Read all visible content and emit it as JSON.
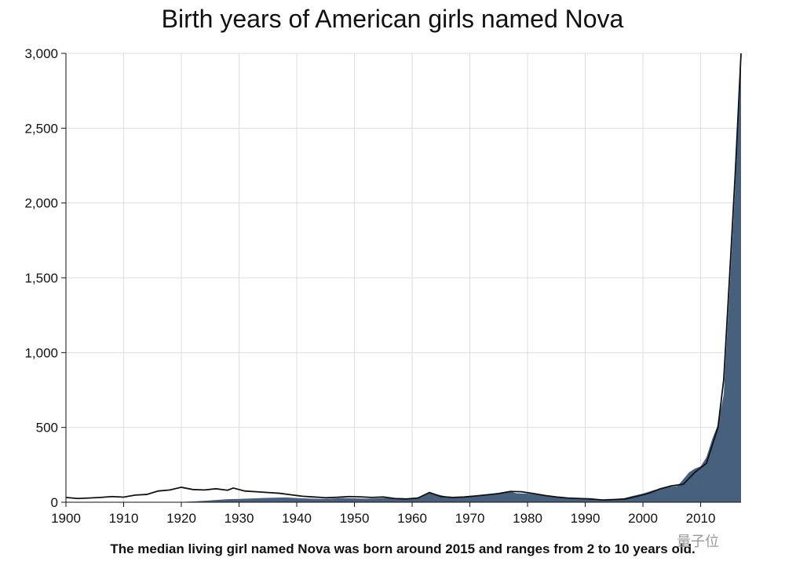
{
  "chart_data": {
    "type": "area",
    "title": "Birth years of American girls named Nova",
    "caption": "The median living girl named Nova was born around 2015 and ranges from 2 to 10 years old.",
    "xlabel": "",
    "ylabel": "",
    "xlim": [
      1900,
      2017
    ],
    "ylim": [
      0,
      3000
    ],
    "grid": true,
    "x_ticks": [
      1900,
      1910,
      1920,
      1930,
      1940,
      1950,
      1960,
      1970,
      1980,
      1990,
      2000,
      2010
    ],
    "y_ticks": [
      0,
      500,
      1000,
      1500,
      2000,
      2500,
      3000
    ],
    "y_tick_labels": [
      "0",
      "500",
      "1,000",
      "1,500",
      "2,000",
      "2,500",
      "3,000"
    ],
    "colors": {
      "fill": "#46607e",
      "line": "#111111",
      "grid": "#dddddd"
    },
    "series": [
      {
        "role": "births (line)",
        "x": [
          1900,
          1902,
          1904,
          1906,
          1908,
          1910,
          1912,
          1914,
          1916,
          1918,
          1920,
          1922,
          1924,
          1926,
          1928,
          1929,
          1931,
          1933,
          1935,
          1937,
          1939,
          1941,
          1943,
          1945,
          1947,
          1949,
          1951,
          1953,
          1955,
          1957,
          1959,
          1961,
          1963,
          1965,
          1967,
          1969,
          1971,
          1973,
          1975,
          1977,
          1979,
          1981,
          1983,
          1985,
          1987,
          1989,
          1991,
          1993,
          1995,
          1997,
          1999,
          2001,
          2003,
          2005,
          2007,
          2009,
          2011,
          2013,
          2014,
          2015,
          2016,
          2017
        ],
        "y": [
          32,
          25,
          28,
          32,
          38,
          34,
          48,
          52,
          75,
          82,
          100,
          85,
          82,
          90,
          80,
          95,
          75,
          70,
          65,
          60,
          50,
          40,
          35,
          30,
          33,
          38,
          36,
          32,
          35,
          25,
          22,
          28,
          65,
          38,
          32,
          35,
          42,
          50,
          58,
          72,
          70,
          58,
          45,
          35,
          28,
          25,
          22,
          15,
          18,
          22,
          40,
          60,
          90,
          110,
          120,
          200,
          260,
          500,
          820,
          1500,
          2200,
          3000
        ]
      },
      {
        "role": "living (filled area)",
        "x": [
          1900,
          1910,
          1915,
          1920,
          1922,
          1924,
          1926,
          1928,
          1930,
          1932,
          1934,
          1936,
          1938,
          1940,
          1942,
          1944,
          1946,
          1948,
          1950,
          1952,
          1954,
          1956,
          1958,
          1960,
          1962,
          1963,
          1964,
          1966,
          1968,
          1970,
          1972,
          1974,
          1976,
          1977,
          1978,
          1980,
          1982,
          1984,
          1986,
          1988,
          1990,
          1992,
          1994,
          1996,
          1998,
          2000,
          2002,
          2004,
          2006,
          2008,
          2009,
          2010,
          2011,
          2012,
          2013,
          2014,
          2015,
          2016,
          2017
        ],
        "y": [
          0,
          0,
          0,
          2,
          5,
          10,
          15,
          20,
          22,
          25,
          28,
          30,
          32,
          28,
          25,
          22,
          24,
          28,
          26,
          24,
          26,
          28,
          22,
          22,
          45,
          62,
          55,
          38,
          34,
          42,
          48,
          55,
          62,
          72,
          60,
          58,
          48,
          38,
          30,
          24,
          22,
          15,
          16,
          20,
          40,
          58,
          82,
          100,
          108,
          200,
          225,
          240,
          300,
          420,
          520,
          720,
          1400,
          2100,
          3000
        ]
      }
    ]
  },
  "watermark": "量子位"
}
